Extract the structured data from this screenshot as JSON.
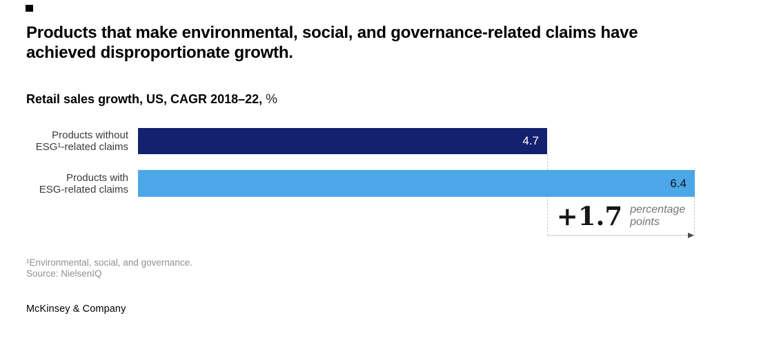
{
  "header": {
    "title": "Products that make environmental, social, and governance-related claims have\nachieved disproportionate growth."
  },
  "chart_data": {
    "type": "bar",
    "orientation": "horizontal",
    "title": "Retail sales growth, US, CAGR 2018–22, %",
    "subtitle_bold": "Retail sales growth, US, CAGR 2018–22,",
    "subtitle_unit": "%",
    "categories": [
      "Products without ESG¹-related claims",
      "Products with ESG-related claims"
    ],
    "category_labels": [
      "Products without\nESG¹-related claims",
      "Products with\nESG-related claims"
    ],
    "values": [
      4.7,
      6.4
    ],
    "value_labels": [
      "4.7",
      "6.4"
    ],
    "bar_colors": [
      "#14216E",
      "#4BA7E8"
    ],
    "value_label_colors": [
      "#FFFFFF",
      "#101010"
    ],
    "xlim": [
      0,
      6.4
    ],
    "grid": false,
    "legend": "none",
    "annotation": {
      "value": "+1.7",
      "label": "percentage\npoints",
      "meaning": "difference between 6.4 and 4.7"
    }
  },
  "footnote": {
    "note": "¹Environmental, social, and governance.",
    "source": "Source: NielsenIQ"
  },
  "branding": {
    "wordmark": "McKinsey & Company"
  }
}
